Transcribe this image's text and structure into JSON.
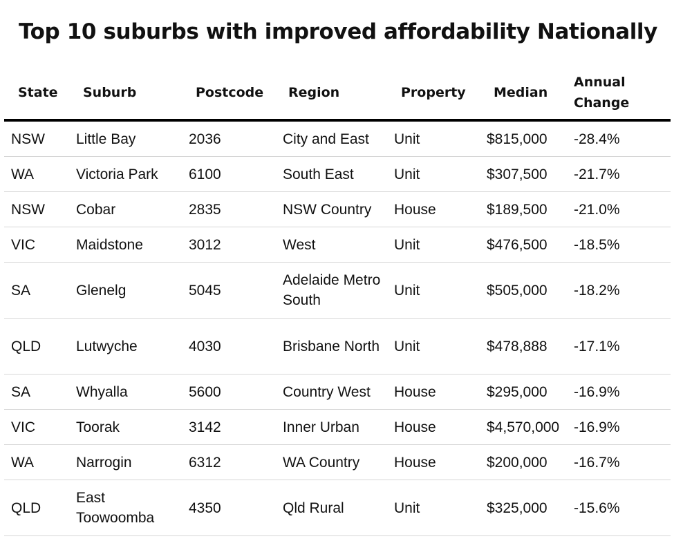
{
  "chart_data": {
    "type": "table",
    "title": "Top 10 suburbs with improved affordability Nationally",
    "columns": [
      "State",
      "Suburb",
      "Postcode",
      "Region",
      "Property",
      "Median",
      "Annual Change"
    ],
    "rows": [
      [
        "NSW",
        "Little Bay",
        "2036",
        "City and East",
        "Unit",
        "$815,000",
        "-28.4%"
      ],
      [
        "WA",
        "Victoria Park",
        "6100",
        "South East",
        "Unit",
        "$307,500",
        "-21.7%"
      ],
      [
        "NSW",
        "Cobar",
        "2835",
        "NSW Country",
        "House",
        "$189,500",
        "-21.0%"
      ],
      [
        "VIC",
        "Maidstone",
        "3012",
        "West",
        "Unit",
        "$476,500",
        "-18.5%"
      ],
      [
        "SA",
        "Glenelg",
        "5045",
        "Adelaide Metro South",
        "Unit",
        "$505,000",
        "-18.2%"
      ],
      [
        "QLD",
        "Lutwyche",
        "4030",
        "Brisbane North",
        "Unit",
        "$478,888",
        "-17.1%"
      ],
      [
        "SA",
        "Whyalla",
        "5600",
        "Country West",
        "House",
        "$295,000",
        "-16.9%"
      ],
      [
        "VIC",
        "Toorak",
        "3142",
        "Inner Urban",
        "House",
        "$4,570,000",
        "-16.9%"
      ],
      [
        "WA",
        "Narrogin",
        "6312",
        "WA Country",
        "House",
        "$200,000",
        "-16.7%"
      ],
      [
        "QLD",
        "East Toowoomba",
        "4350",
        "Qld Rural",
        "Unit",
        "$325,000",
        "-15.6%"
      ]
    ]
  }
}
